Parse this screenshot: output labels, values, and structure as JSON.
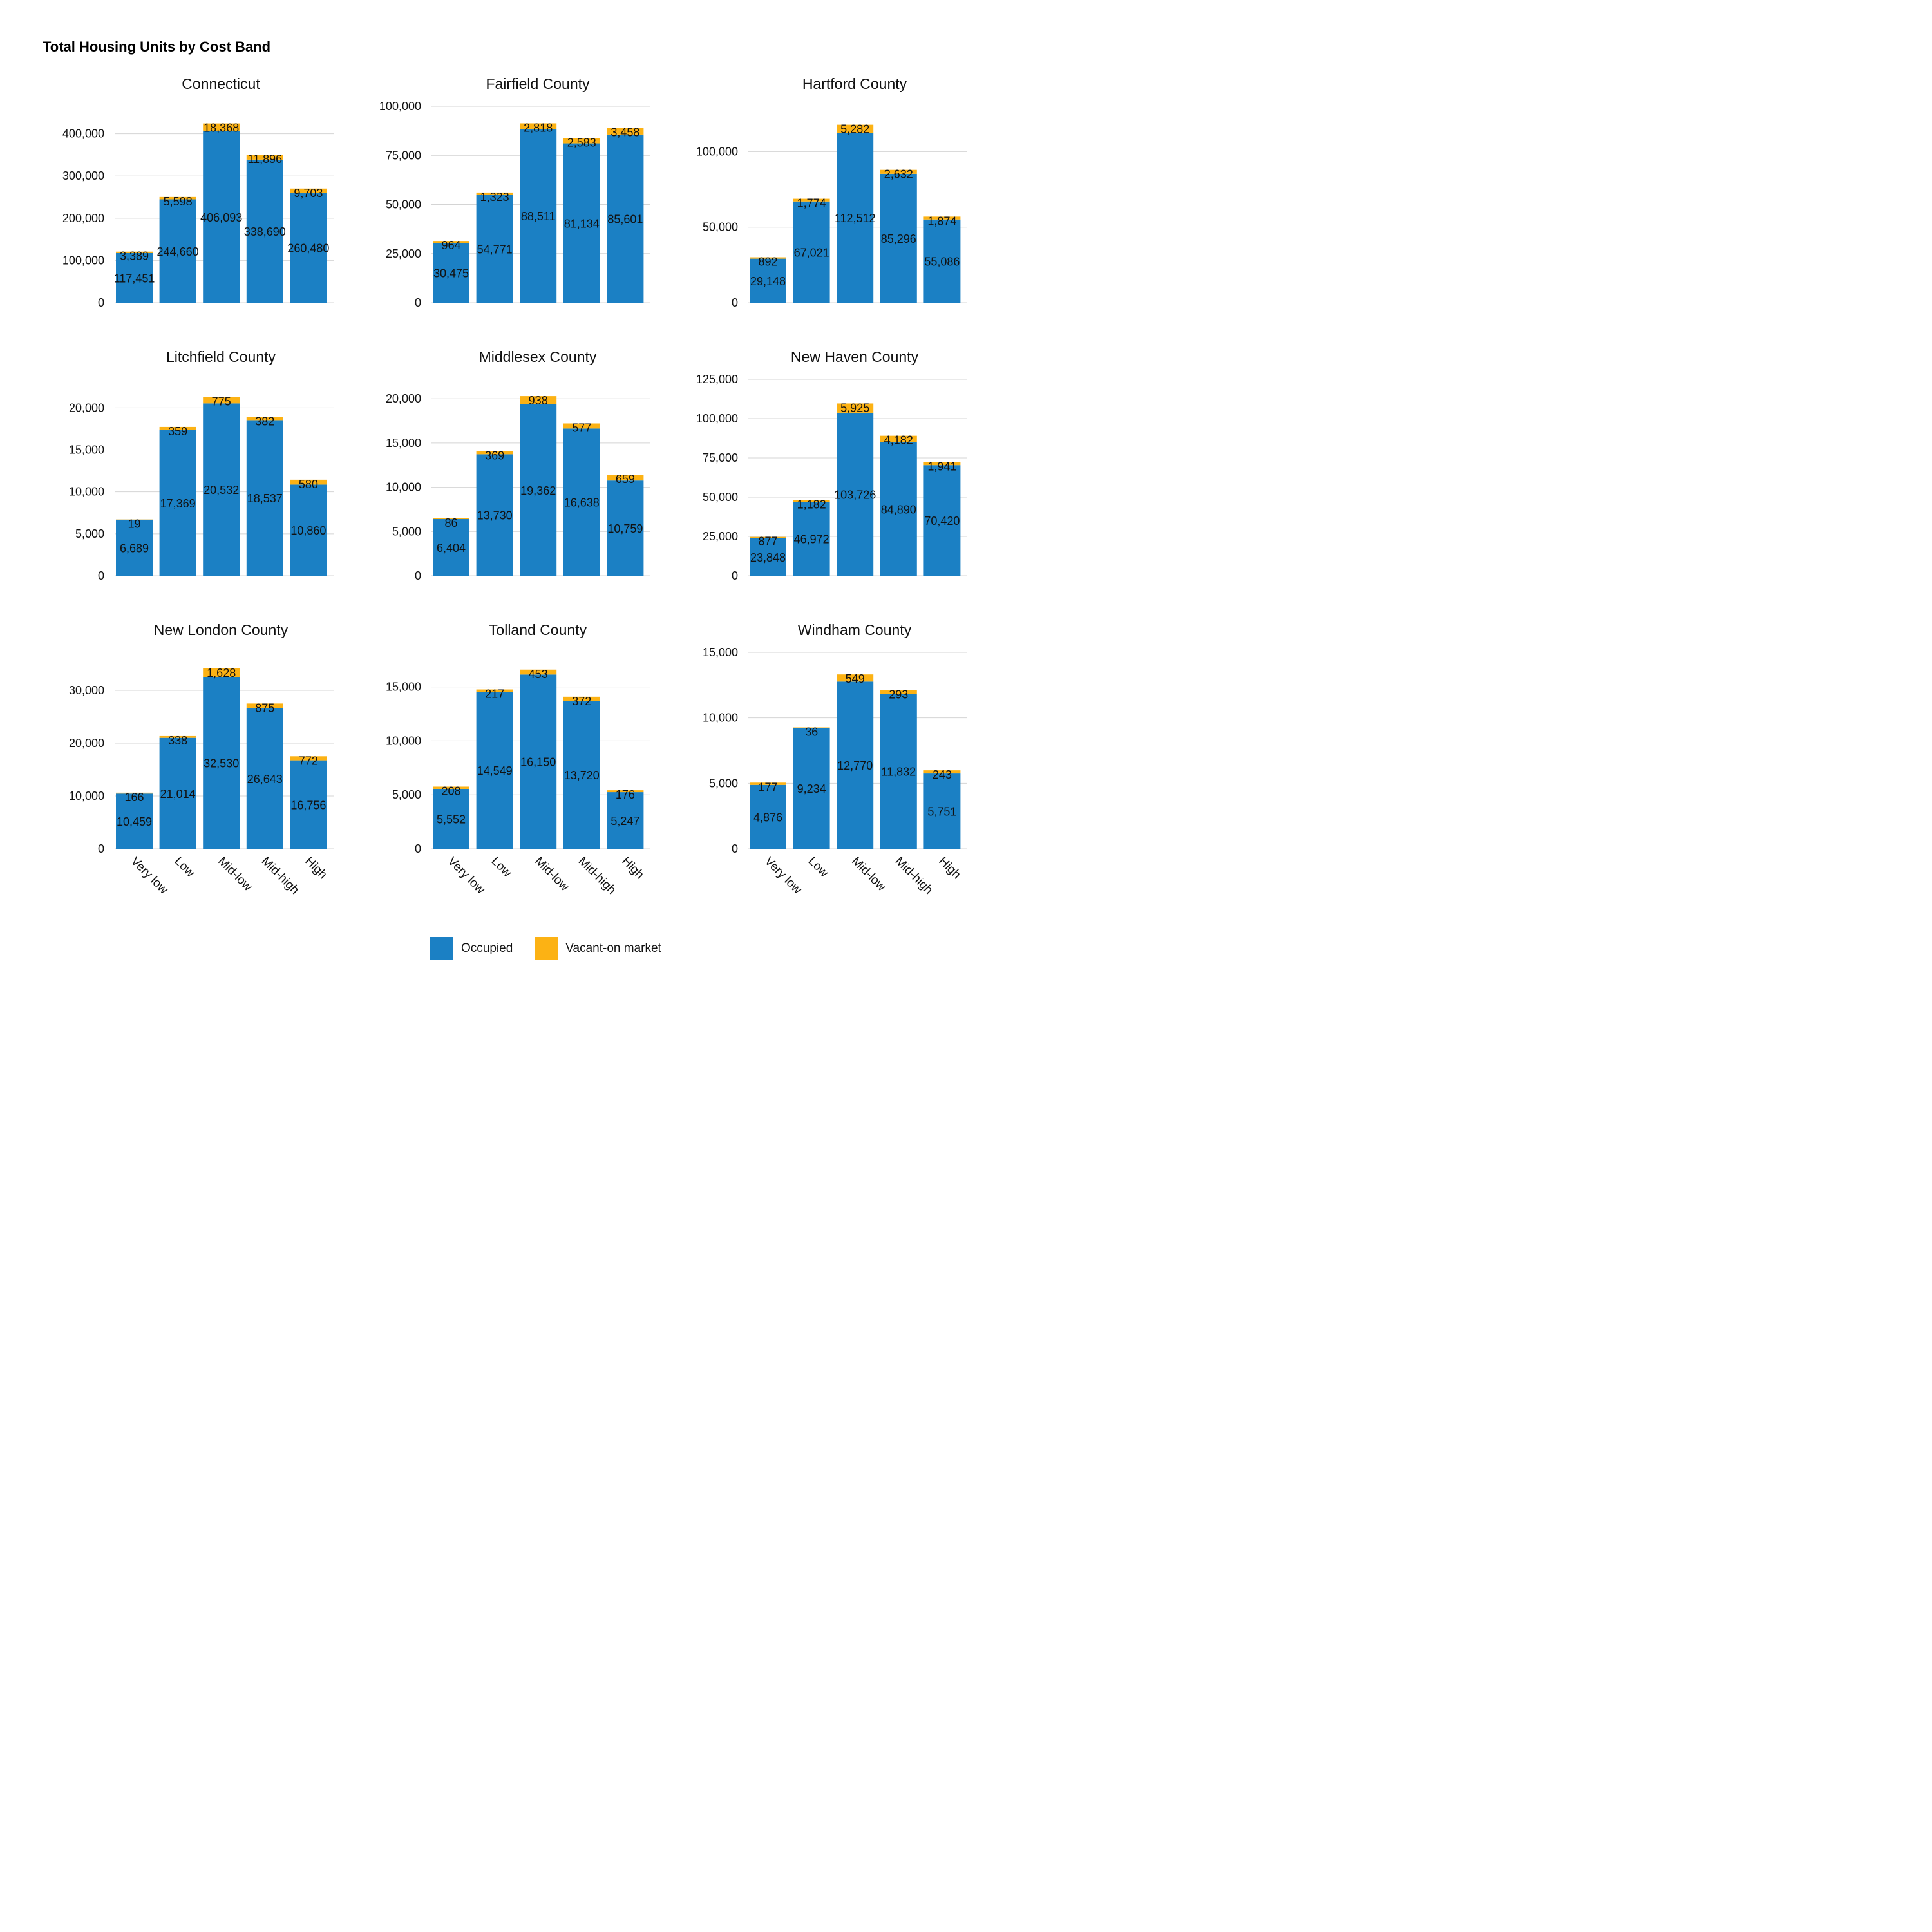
{
  "title": "Total Housing Units by Cost Band",
  "legend": {
    "items": [
      {
        "label": "Occupied",
        "color": "#1b80c4"
      },
      {
        "label": "Vacant-on market",
        "color": "#fcb214"
      }
    ]
  },
  "chart_data": [
    {
      "type": "bar",
      "stacked": true,
      "title": "Connecticut",
      "categories": [
        "Very low",
        "Low",
        "Mid-low",
        "Mid-high",
        "High"
      ],
      "yticks": [
        0,
        100000,
        200000,
        300000,
        400000
      ],
      "ylim": [
        0,
        465000
      ],
      "series": [
        {
          "name": "Occupied",
          "values": [
            117451,
            244660,
            406093,
            338690,
            260480
          ]
        },
        {
          "name": "Vacant-on market",
          "values": [
            3389,
            5598,
            18368,
            11896,
            9703
          ]
        }
      ]
    },
    {
      "type": "bar",
      "stacked": true,
      "title": "Fairfield County",
      "categories": [
        "Very low",
        "Low",
        "Mid-low",
        "Mid-high",
        "High"
      ],
      "yticks": [
        0,
        25000,
        50000,
        75000,
        100000
      ],
      "ylim": [
        0,
        100000
      ],
      "series": [
        {
          "name": "Occupied",
          "values": [
            30475,
            54771,
            88511,
            81134,
            85601
          ]
        },
        {
          "name": "Vacant-on market",
          "values": [
            964,
            1323,
            2818,
            2583,
            3458
          ]
        }
      ]
    },
    {
      "type": "bar",
      "stacked": true,
      "title": "Hartford County",
      "categories": [
        "Very low",
        "Low",
        "Mid-low",
        "Mid-high",
        "High"
      ],
      "yticks": [
        0,
        50000,
        100000
      ],
      "ylim": [
        0,
        130000
      ],
      "series": [
        {
          "name": "Occupied",
          "values": [
            29148,
            67021,
            112512,
            85296,
            55086
          ]
        },
        {
          "name": "Vacant-on market",
          "values": [
            892,
            1774,
            5282,
            2632,
            1874
          ]
        }
      ]
    },
    {
      "type": "bar",
      "stacked": true,
      "title": "Litchfield County",
      "categories": [
        "Very low",
        "Low",
        "Mid-low",
        "Mid-high",
        "High"
      ],
      "yticks": [
        0,
        5000,
        10000,
        15000,
        20000
      ],
      "ylim": [
        0,
        23400
      ],
      "series": [
        {
          "name": "Occupied",
          "values": [
            6689,
            17369,
            20532,
            18537,
            10860
          ]
        },
        {
          "name": "Vacant-on market",
          "values": [
            19,
            359,
            775,
            382,
            580
          ]
        }
      ]
    },
    {
      "type": "bar",
      "stacked": true,
      "title": "Middlesex County",
      "categories": [
        "Very low",
        "Low",
        "Mid-low",
        "Mid-high",
        "High"
      ],
      "yticks": [
        0,
        5000,
        10000,
        15000,
        20000
      ],
      "ylim": [
        0,
        22200
      ],
      "series": [
        {
          "name": "Occupied",
          "values": [
            6404,
            13730,
            19362,
            16638,
            10759
          ]
        },
        {
          "name": "Vacant-on market",
          "values": [
            86,
            369,
            938,
            577,
            659
          ]
        }
      ]
    },
    {
      "type": "bar",
      "stacked": true,
      "title": "New Haven County",
      "categories": [
        "Very low",
        "Low",
        "Mid-low",
        "Mid-high",
        "High"
      ],
      "yticks": [
        0,
        25000,
        50000,
        75000,
        100000,
        125000
      ],
      "ylim": [
        0,
        125000
      ],
      "series": [
        {
          "name": "Occupied",
          "values": [
            23848,
            46972,
            103726,
            84890,
            70420
          ]
        },
        {
          "name": "Vacant-on market",
          "values": [
            877,
            1182,
            5925,
            4182,
            1941
          ]
        }
      ]
    },
    {
      "type": "bar",
      "stacked": true,
      "title": "New London County",
      "categories": [
        "Very low",
        "Low",
        "Mid-low",
        "Mid-high",
        "High"
      ],
      "yticks": [
        0,
        10000,
        20000,
        30000
      ],
      "ylim": [
        0,
        37200
      ],
      "series": [
        {
          "name": "Occupied",
          "values": [
            10459,
            21014,
            32530,
            26643,
            16756
          ]
        },
        {
          "name": "Vacant-on market",
          "values": [
            166,
            338,
            1628,
            875,
            772
          ]
        }
      ]
    },
    {
      "type": "bar",
      "stacked": true,
      "title": "Tolland County",
      "categories": [
        "Very low",
        "Low",
        "Mid-low",
        "Mid-high",
        "High"
      ],
      "yticks": [
        0,
        5000,
        10000,
        15000
      ],
      "ylim": [
        0,
        18200
      ],
      "series": [
        {
          "name": "Occupied",
          "values": [
            5552,
            14549,
            16150,
            13720,
            5247
          ]
        },
        {
          "name": "Vacant-on market",
          "values": [
            208,
            217,
            453,
            372,
            176
          ]
        }
      ]
    },
    {
      "type": "bar",
      "stacked": true,
      "title": "Windham County",
      "categories": [
        "Very low",
        "Low",
        "Mid-low",
        "Mid-high",
        "High"
      ],
      "yticks": [
        0,
        5000,
        10000,
        15000
      ],
      "ylim": [
        0,
        15000
      ],
      "series": [
        {
          "name": "Occupied",
          "values": [
            4876,
            9234,
            12770,
            11832,
            5751
          ]
        },
        {
          "name": "Vacant-on market",
          "values": [
            177,
            36,
            549,
            293,
            243
          ]
        }
      ]
    }
  ]
}
